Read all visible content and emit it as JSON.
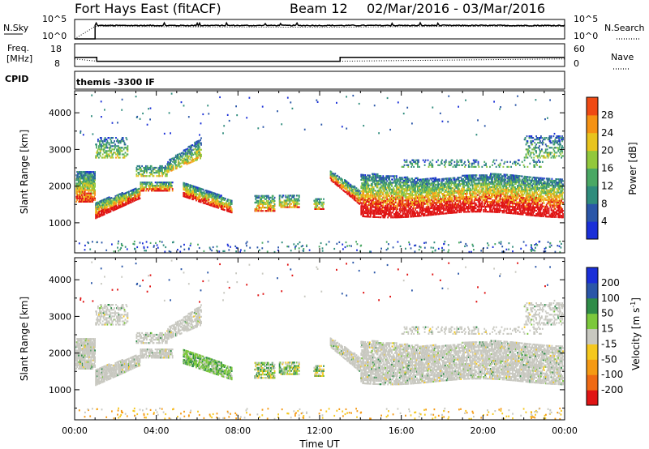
{
  "header": {
    "title": "Fort Hays East (fitACF)",
    "beam": "Beam 12",
    "dates": "02/Mar/2016 - 03/Mar/2016"
  },
  "summary_panels": {
    "nsky_label": "N.Sky",
    "nsky_tick_top": "10^5",
    "nsky_tick_bottom": "10^0",
    "nsearch_label": "N.Search",
    "nsearch_tick_top": "10^5",
    "nsearch_tick_bottom": "10^0",
    "freq_label": "Freq.",
    "freq_unit": "[MHz]",
    "freq_tick_top": "18",
    "freq_tick_bottom": "8",
    "nave_label": "Nave",
    "nave_tick_top": "60",
    "nave_tick_bottom": "0",
    "cpid_label": "CPID",
    "cpid_value": "themis -3300 IF"
  },
  "colors": {
    "power": [
      "#1a2fd8",
      "#2a56a8",
      "#2f8c7c",
      "#4aa864",
      "#92c83c",
      "#e8c41e",
      "#f59214",
      "#ef4a14",
      "#e01414"
    ],
    "velocity": [
      "#e01414",
      "#ef6a14",
      "#f59a14",
      "#f5c81e",
      "#c8c8c0",
      "#c8c8c0",
      "#7cc83c",
      "#2f8c48",
      "#2a56a8",
      "#1a2fd8"
    ]
  },
  "chart_data": [
    {
      "type": "line",
      "title": "",
      "series": [
        {
          "name": "N.Sky",
          "x": [
            "00:00",
            "01:00",
            "02:00",
            "06:00",
            "10:00",
            "13:00",
            "18:00",
            "22:00",
            "00:00"
          ],
          "values": [
            0,
            3.5,
            3.6,
            3.4,
            3.2,
            3.4,
            3.5,
            3.6,
            3.5
          ]
        },
        {
          "name": "N.Search",
          "x": [
            "00:00",
            "01:00",
            "06:00",
            "12:00",
            "18:00",
            "00:00"
          ],
          "values": [
            0,
            3.2,
            3.1,
            3.0,
            3.2,
            3.2
          ]
        }
      ]
    },
    {
      "type": "line",
      "series": [
        {
          "name": "Freq.",
          "x": [
            "00:00",
            "01:05",
            "01:05",
            "13:00",
            "13:00",
            "00:00"
          ],
          "values": [
            12,
            12,
            10.3,
            10.3,
            12,
            12
          ]
        },
        {
          "name": "Nave",
          "x": [
            "00:00",
            "01:05",
            "13:00",
            "00:00"
          ],
          "values": [
            20,
            14,
            14,
            20
          ]
        }
      ]
    },
    {
      "type": "heatmap",
      "xlabel": "",
      "ylabel": "Slant Range [km]",
      "x_ticks": [
        "00:00",
        "04:00",
        "08:00",
        "12:00",
        "16:00",
        "20:00",
        "00:00"
      ],
      "y_ticks": [
        "1000",
        "2000",
        "3000",
        "4000"
      ],
      "colorbar_label": "Power [dB]",
      "colorbar_ticks": [
        "4",
        "8",
        "12",
        "16",
        "20",
        "24",
        "28"
      ],
      "features": [
        {
          "x": [
            0.05,
            1.0
          ],
          "y": [
            1600,
            2400
          ]
        },
        {
          "x": [
            1.0,
            4.8
          ],
          "y": [
            1150,
            2100
          ]
        },
        {
          "x": [
            1.0,
            2.5
          ],
          "y": [
            2800,
            3300
          ]
        },
        {
          "x": [
            4.5,
            6.2
          ],
          "y": [
            2300,
            3300
          ]
        },
        {
          "x": [
            5.3,
            7.7
          ],
          "y": [
            1250,
            1850
          ]
        },
        {
          "x": [
            8.8,
            9.8
          ],
          "y": [
            1350,
            1800
          ]
        },
        {
          "x": [
            10.0,
            11.0
          ],
          "y": [
            1450,
            1800
          ]
        },
        {
          "x": [
            11.7,
            12.2
          ],
          "y": [
            1450,
            1700
          ]
        },
        {
          "x": [
            12.5,
            24.0
          ],
          "y": [
            1200,
            2300
          ]
        }
      ]
    },
    {
      "type": "heatmap",
      "xlabel": "Time UT",
      "ylabel": "Slant Range [km]",
      "x_ticks": [
        "00:00",
        "04:00",
        "08:00",
        "12:00",
        "16:00",
        "20:00",
        "00:00"
      ],
      "y_ticks": [
        "1000",
        "2000",
        "3000",
        "4000"
      ],
      "colorbar_label": "Velocity [m s-1]",
      "colorbar_label_main": "Velocity [m s",
      "colorbar_label_sup": "-1",
      "colorbar_label_end": "]",
      "colorbar_ticks": [
        "-200",
        "-100",
        "-50",
        "-15",
        "15",
        "50",
        "100",
        "200"
      ]
    }
  ]
}
